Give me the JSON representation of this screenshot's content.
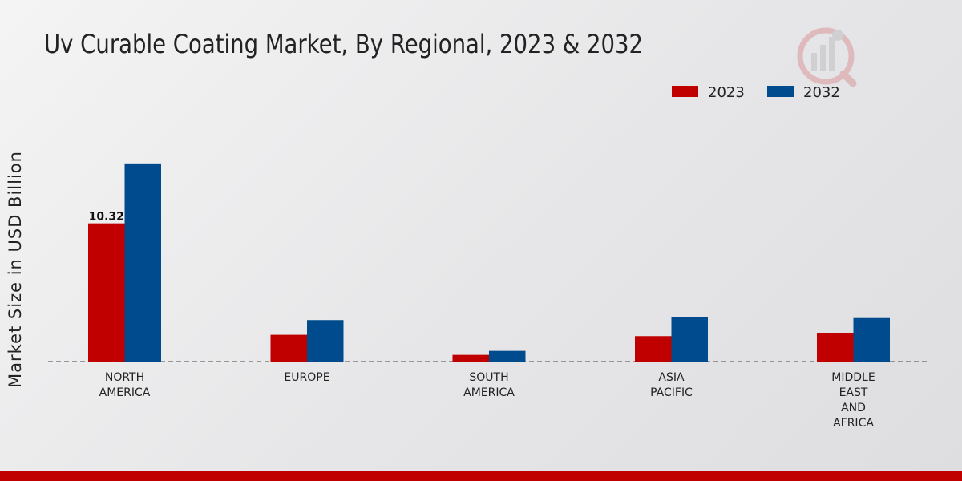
{
  "chart_data": {
    "type": "bar",
    "title": "Uv Curable Coating Market, By Regional, 2023 & 2032",
    "xlabel": "",
    "ylabel": "Market Size in USD Billion",
    "categories": [
      [
        "NORTH",
        "AMERICA"
      ],
      [
        "EUROPE"
      ],
      [
        "SOUTH",
        "AMERICA"
      ],
      [
        "ASIA",
        "PACIFIC"
      ],
      [
        "MIDDLE",
        "EAST",
        "AND",
        "AFRICA"
      ]
    ],
    "series": [
      {
        "name": "2023",
        "color": "#c00000",
        "values": [
          10.32,
          2.0,
          0.5,
          1.9,
          2.1
        ],
        "labels": [
          "10.32",
          "",
          "",
          "",
          ""
        ]
      },
      {
        "name": "2032",
        "color": "#004b8d",
        "values": [
          14.8,
          3.1,
          0.8,
          3.35,
          3.25
        ],
        "labels": [
          "",
          "",
          "",
          "",
          ""
        ]
      }
    ],
    "ylim": [
      0,
      20
    ],
    "legend_position": "top-right",
    "grid": false
  },
  "logo": {
    "name": "market-research-logo",
    "colors": [
      "#c00000",
      "#888888"
    ]
  }
}
